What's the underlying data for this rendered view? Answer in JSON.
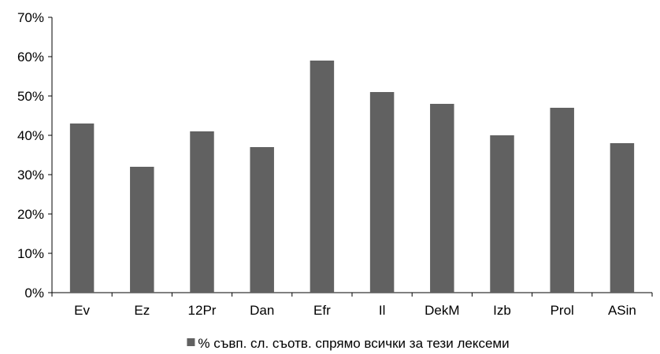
{
  "chart_data": {
    "type": "bar",
    "categories": [
      "Ev",
      "Ez",
      "12Pr",
      "Dan",
      "Efr",
      "Il",
      "DekM",
      "Izb",
      "Prol",
      "ASin"
    ],
    "series": [
      {
        "name": "% съвп. сл. съотв. спрямо всички за тези лексеми",
        "values": [
          43,
          32,
          41,
          37,
          59,
          51,
          48,
          40,
          47,
          38
        ]
      }
    ],
    "ylim": [
      0,
      70
    ],
    "yticks": [
      "0%",
      "10%",
      "20%",
      "30%",
      "40%",
      "50%",
      "60%",
      "70%"
    ],
    "grid": false,
    "legend_position": "bottom",
    "bar_color": "#616161",
    "title": "",
    "xlabel": "",
    "ylabel": ""
  }
}
